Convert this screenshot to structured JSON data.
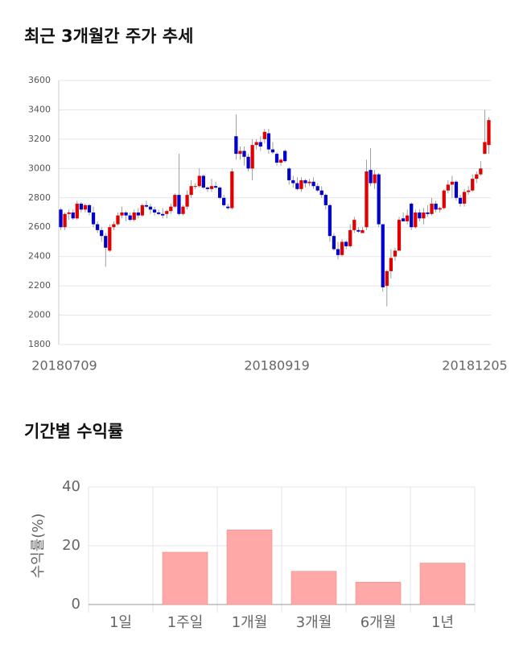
{
  "chart_data": [
    {
      "type": "candlestick",
      "title": "최근 3개월간 주가 추세",
      "categories": [
        "20180709",
        null,
        null,
        null,
        null,
        null,
        null,
        null,
        null,
        null,
        null,
        null,
        null,
        null,
        null,
        null,
        null,
        null,
        null,
        null,
        null,
        null,
        null,
        null,
        null,
        null,
        null,
        null,
        null,
        null,
        null,
        null,
        null,
        null,
        null,
        null,
        null,
        null,
        null,
        null,
        null,
        null,
        null,
        null,
        null,
        null,
        null,
        null,
        null,
        null,
        null,
        null,
        null,
        "20180919",
        null,
        null,
        null,
        null,
        null,
        null,
        null,
        null,
        null,
        null,
        null,
        null,
        null,
        null,
        null,
        null,
        null,
        null,
        null,
        null,
        null,
        null,
        null,
        null,
        null,
        null,
        null,
        null,
        null,
        null,
        null,
        null,
        null,
        null,
        null,
        null,
        null,
        null,
        null,
        null,
        null,
        null,
        null,
        null,
        null,
        null,
        null,
        null,
        null,
        null,
        null,
        "20181205"
      ],
      "open": [
        2720,
        2600,
        2690,
        2700,
        2660,
        2760,
        2720,
        2750,
        2700,
        2620,
        2580,
        2540,
        2440,
        2600,
        2620,
        2680,
        2700,
        2680,
        2650,
        2700,
        2680,
        2750,
        2740,
        2720,
        2700,
        2690,
        2690,
        2710,
        2740,
        2820,
        2690,
        2740,
        2820,
        2880,
        2880,
        2950,
        2870,
        2860,
        2880,
        2870,
        2800,
        2740,
        2730,
        3220,
        3100,
        3120,
        3080,
        3000,
        3160,
        3180,
        3200,
        3240,
        3130,
        3100,
        3040,
        3120,
        3000,
        2920,
        2900,
        2860,
        2920,
        2900,
        2910,
        2880,
        2850,
        2820,
        2750,
        2540,
        2450,
        2410,
        2500,
        2470,
        2580,
        2580,
        2560,
        2600,
        2990,
        2900,
        2960,
        2620,
        2200,
        2300,
        2400,
        2440,
        2660,
        2640,
        2760,
        2600,
        2700,
        2660,
        2700,
        2690,
        2760,
        2720,
        2730,
        2850,
        2890,
        2910,
        2800,
        2760,
        2840,
        2850,
        2930,
        2960,
        3100,
        3160
      ],
      "high": [
        2730,
        2700,
        2720,
        2720,
        2780,
        2770,
        2760,
        2760,
        2740,
        2640,
        2600,
        2560,
        2620,
        2640,
        2700,
        2740,
        2710,
        2700,
        2720,
        2730,
        2760,
        2780,
        2760,
        2740,
        2720,
        2730,
        2720,
        2760,
        2830,
        3100,
        2750,
        2850,
        2920,
        2900,
        3000,
        2960,
        2880,
        2930,
        2910,
        2880,
        2820,
        2760,
        3000,
        3370,
        3150,
        3150,
        3100,
        3200,
        3200,
        3220,
        3270,
        3270,
        3180,
        3110,
        3070,
        3130,
        3010,
        2950,
        2940,
        2940,
        2930,
        2930,
        2940,
        2900,
        2880,
        2830,
        2760,
        2560,
        2500,
        2520,
        2510,
        2620,
        2670,
        2600,
        2600,
        3060,
        3140,
        2990,
        2970,
        2620,
        2310,
        2450,
        2460,
        2670,
        2700,
        2720,
        2770,
        2720,
        2720,
        2730,
        2750,
        2800,
        2780,
        2740,
        2860,
        2920,
        2950,
        2920,
        2820,
        2860,
        2880,
        2960,
        2980,
        3050,
        3400,
        3350
      ],
      "low": [
        2580,
        2580,
        2650,
        2650,
        2650,
        2700,
        2700,
        2680,
        2600,
        2560,
        2500,
        2330,
        2430,
        2580,
        2610,
        2660,
        2640,
        2640,
        2640,
        2660,
        2670,
        2730,
        2690,
        2680,
        2680,
        2660,
        2660,
        2690,
        2730,
        2680,
        2680,
        2720,
        2800,
        2860,
        2870,
        2860,
        2840,
        2840,
        2860,
        2790,
        2740,
        2720,
        2720,
        3060,
        3060,
        3020,
        2980,
        2920,
        3130,
        3120,
        3170,
        3100,
        3100,
        3020,
        3020,
        3040,
        2890,
        2870,
        2850,
        2840,
        2870,
        2880,
        2860,
        2840,
        2800,
        2720,
        2500,
        2440,
        2380,
        2400,
        2450,
        2460,
        2560,
        2560,
        2560,
        2580,
        2880,
        2860,
        2600,
        2160,
        2060,
        2250,
        2370,
        2440,
        2640,
        2620,
        2580,
        2590,
        2640,
        2620,
        2670,
        2680,
        2700,
        2700,
        2720,
        2830,
        2800,
        2780,
        2740,
        2740,
        2820,
        2840,
        2900,
        2950,
        3100,
        3100
      ],
      "close": [
        2600,
        2690,
        2700,
        2660,
        2760,
        2720,
        2750,
        2700,
        2620,
        2580,
        2540,
        2460,
        2600,
        2620,
        2680,
        2700,
        2680,
        2650,
        2700,
        2680,
        2750,
        2740,
        2720,
        2700,
        2690,
        2680,
        2710,
        2740,
        2820,
        2690,
        2740,
        2820,
        2880,
        2880,
        2950,
        2870,
        2860,
        2880,
        2870,
        2800,
        2750,
        2730,
        2980,
        3100,
        3120,
        3080,
        3000,
        3160,
        3180,
        3150,
        3250,
        3130,
        3110,
        3040,
        3060,
        3050,
        2920,
        2900,
        2860,
        2920,
        2900,
        2910,
        2880,
        2850,
        2820,
        2750,
        2540,
        2450,
        2410,
        2500,
        2470,
        2580,
        2650,
        2570,
        2580,
        2980,
        2900,
        2960,
        2620,
        2190,
        2300,
        2390,
        2440,
        2650,
        2640,
        2680,
        2600,
        2700,
        2660,
        2700,
        2690,
        2760,
        2720,
        2730,
        2850,
        2890,
        2910,
        2800,
        2760,
        2840,
        2850,
        2930,
        2960,
        3000,
        3180,
        3330
      ],
      "up_color": "#e00000",
      "down_color": "#0000cc",
      "ylim": [
        1800,
        3600
      ],
      "yticks": [
        1800,
        2000,
        2200,
        2400,
        2600,
        2800,
        3000,
        3200,
        3400,
        3600
      ],
      "grid": true
    },
    {
      "type": "bar",
      "title": "기간별 수익률",
      "y_label": "수익률(%)",
      "categories": [
        "1일",
        "1주일",
        "1개월",
        "3개월",
        "6개월",
        "1년"
      ],
      "values": [
        0,
        17.8,
        25.4,
        11.3,
        7.6,
        14.1
      ],
      "color": "#ffa8a8",
      "ylim": [
        0,
        40
      ],
      "yticks": [
        0,
        20,
        40
      ],
      "grid": true
    }
  ]
}
